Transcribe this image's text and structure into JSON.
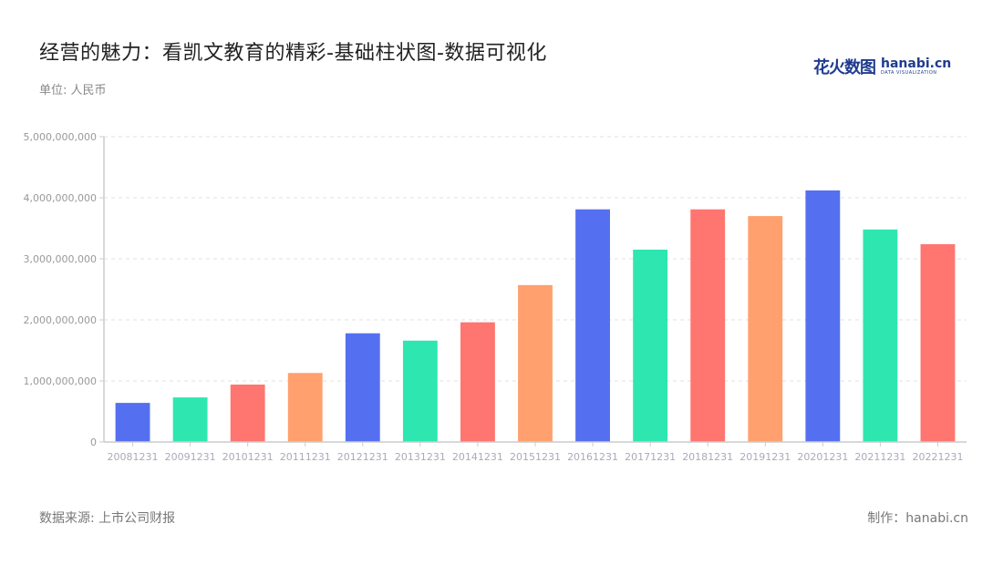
{
  "header": {
    "title": "经营的魅力：看凯文教育的精彩-基础柱状图-数据可视化",
    "unit": "单位: 人民币"
  },
  "logo": {
    "cn": "花火数图",
    "en": "hanabi.cn",
    "tagline": "DATA VISUALIZATION"
  },
  "footer": {
    "source": "数据来源: 上市公司财报",
    "credit": "制作：hanabi.cn"
  },
  "colors": [
    "#5470f0",
    "#2ee6b0",
    "#ff7570",
    "#ffa06e"
  ],
  "chart_data": {
    "type": "bar",
    "title": "经营的魅力：看凯文教育的精彩-基础柱状图-数据可视化",
    "xlabel": "",
    "ylabel": "单位: 人民币",
    "ylim": [
      0,
      5000000000
    ],
    "yticks": [
      0,
      1000000000,
      2000000000,
      3000000000,
      4000000000,
      5000000000
    ],
    "ytick_labels": [
      "0",
      "1,000,000,000",
      "2,000,000,000",
      "3,000,000,000",
      "4,000,000,000",
      "5,000,000,000"
    ],
    "grid": true,
    "legend": "none",
    "categories": [
      "20081231",
      "20091231",
      "20101231",
      "20111231",
      "20121231",
      "20131231",
      "20141231",
      "20151231",
      "20161231",
      "20171231",
      "20181231",
      "20191231",
      "20201231",
      "20211231",
      "20221231"
    ],
    "values": [
      640000000,
      730000000,
      940000000,
      1130000000,
      1780000000,
      1660000000,
      1960000000,
      2570000000,
      3810000000,
      3150000000,
      3810000000,
      3700000000,
      4120000000,
      3480000000,
      3240000000
    ],
    "bar_colors": [
      "#5470f0",
      "#2ee6b0",
      "#ff7570",
      "#ffa06e",
      "#5470f0",
      "#2ee6b0",
      "#ff7570",
      "#ffa06e",
      "#5470f0",
      "#2ee6b0",
      "#ff7570",
      "#ffa06e",
      "#5470f0",
      "#2ee6b0",
      "#ff7570"
    ]
  }
}
